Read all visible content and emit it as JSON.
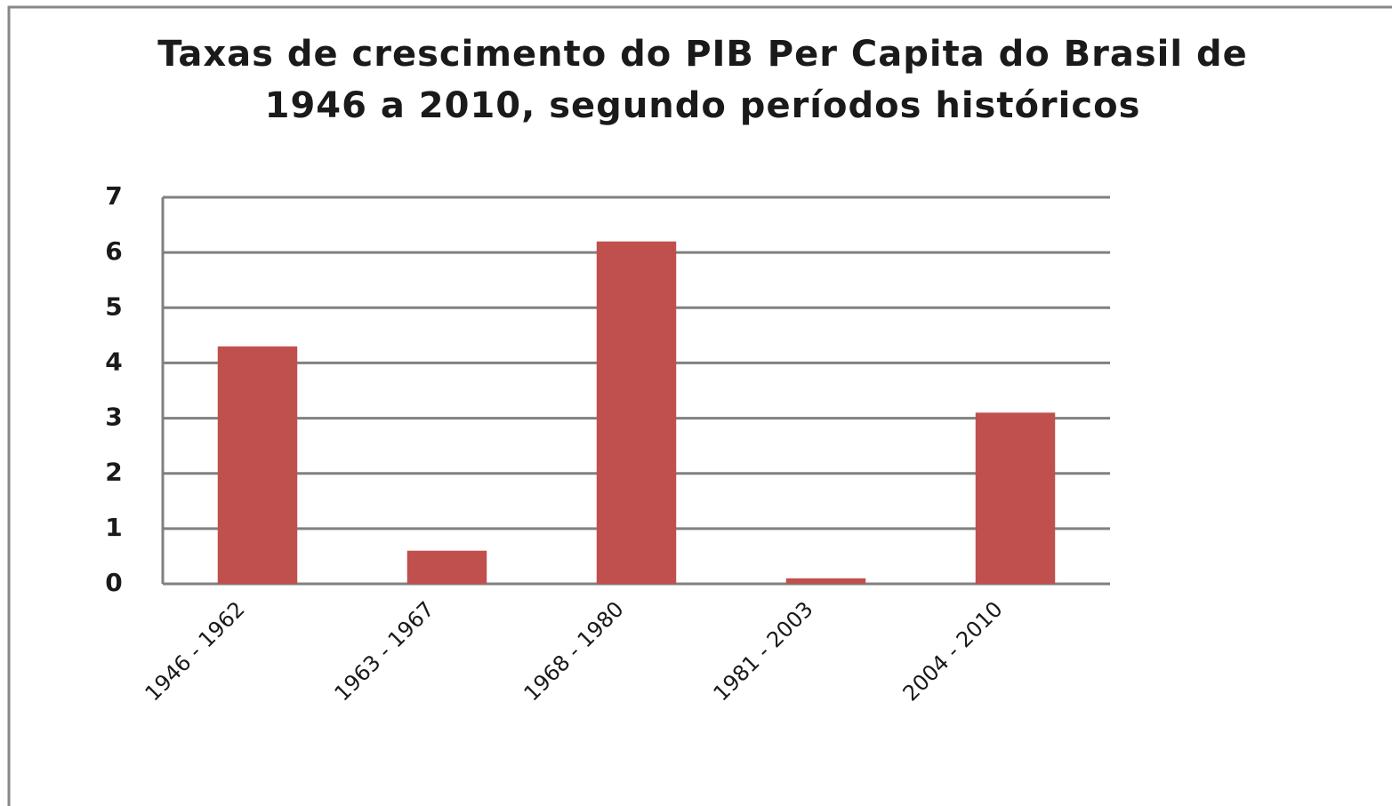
{
  "chart_data": {
    "type": "bar",
    "title": "Taxas de crescimento do PIB Per Capita do Brasil de 1946 a 2010, segundo períodos históricos",
    "categories": [
      "1946 - 1962",
      "1963 - 1967",
      "1968 - 1980",
      "1981 - 2003",
      "2004 - 2010"
    ],
    "values": [
      4.3,
      0.6,
      6.2,
      0.1,
      3.1
    ],
    "color": "#c0504d",
    "ylim": [
      0,
      7
    ],
    "yticks": [
      0,
      1,
      2,
      3,
      4,
      5,
      6,
      7
    ],
    "grid": true
  }
}
